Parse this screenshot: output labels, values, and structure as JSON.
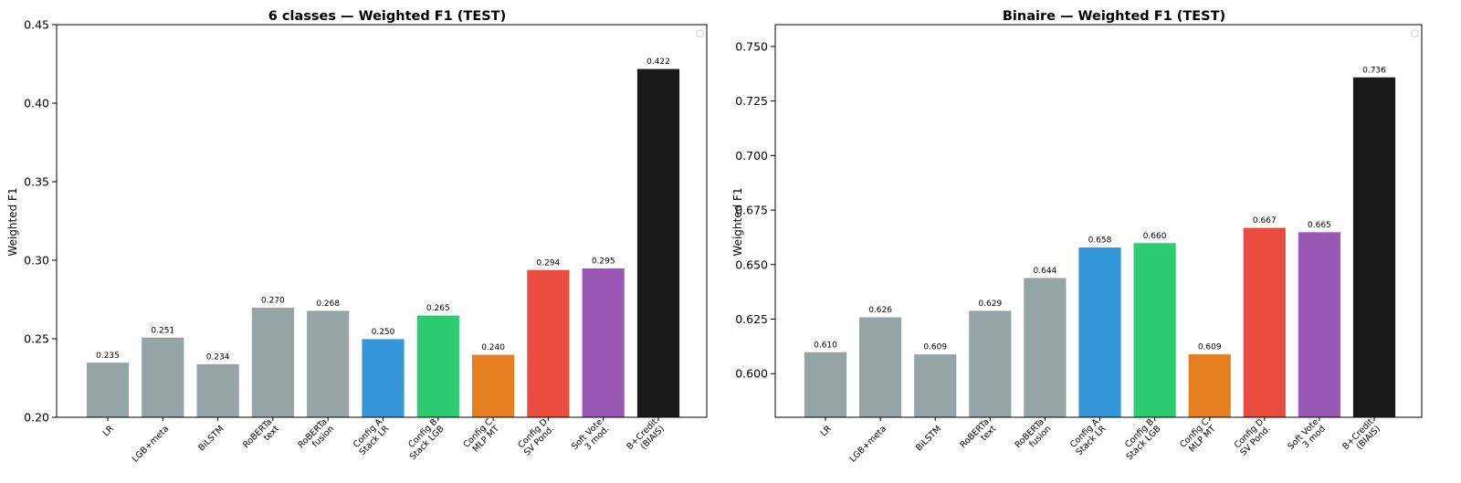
{
  "chart_data": [
    {
      "type": "bar",
      "title": "6 classes — Weighted F1 (TEST)",
      "xlabel": "",
      "ylabel": "Weighted F1",
      "ylim": [
        0.2,
        0.45
      ],
      "yticks": [
        "0.20",
        "0.25",
        "0.30",
        "0.35",
        "0.40",
        "0.45"
      ],
      "grid": false,
      "legend": "top-right (empty)",
      "categories": [
        [
          "LR"
        ],
        [
          "LGB+meta"
        ],
        [
          "BiLSTM"
        ],
        [
          "RoBERTa",
          "text"
        ],
        [
          "RoBERTa",
          "fusion"
        ],
        [
          "Config A",
          "Stack LR"
        ],
        [
          "Config B",
          "Stack LGB"
        ],
        [
          "Config C",
          "MLP MT"
        ],
        [
          "Config D",
          "SV Pond."
        ],
        [
          "Soft Vote",
          "3 mod."
        ],
        [
          "B+Credit",
          "(BIAIS)"
        ]
      ],
      "values": [
        0.235,
        0.251,
        0.234,
        0.27,
        0.268,
        0.25,
        0.265,
        0.24,
        0.294,
        0.295,
        0.422
      ],
      "value_labels": [
        "0.235",
        "0.251",
        "0.234",
        "0.270",
        "0.268",
        "0.250",
        "0.265",
        "0.240",
        "0.294",
        "0.295",
        "0.422"
      ],
      "colors": [
        "#95a5a6",
        "#95a5a6",
        "#95a5a6",
        "#95a5a6",
        "#95a5a6",
        "#3498db",
        "#2ecc71",
        "#e67e22",
        "#e74c3c",
        "#9b59b6",
        "#1a1a1a"
      ]
    },
    {
      "type": "bar",
      "title": "Binaire — Weighted F1 (TEST)",
      "xlabel": "",
      "ylabel": "Weighted F1",
      "ylim": [
        0.58,
        0.76
      ],
      "yticks": [
        "0.600",
        "0.625",
        "0.650",
        "0.675",
        "0.700",
        "0.725",
        "0.750"
      ],
      "grid": false,
      "legend": "top-right (empty)",
      "categories": [
        [
          "LR"
        ],
        [
          "LGB+meta"
        ],
        [
          "BiLSTM"
        ],
        [
          "RoBERTa",
          "text"
        ],
        [
          "RoBERTa",
          "fusion"
        ],
        [
          "Config A",
          "Stack LR"
        ],
        [
          "Config B",
          "Stack LGB"
        ],
        [
          "Config C",
          "MLP MT"
        ],
        [
          "Config D",
          "SV Pond."
        ],
        [
          "Soft Vote",
          "3 mod"
        ],
        [
          "B+Credit",
          "(BIAIS)"
        ]
      ],
      "values": [
        0.61,
        0.626,
        0.609,
        0.629,
        0.644,
        0.658,
        0.66,
        0.609,
        0.667,
        0.665,
        0.736
      ],
      "value_labels": [
        "0.610",
        "0.626",
        "0.609",
        "0.629",
        "0.644",
        "0.658",
        "0.660",
        "0.609",
        "0.667",
        "0.665",
        "0.736"
      ],
      "colors": [
        "#95a5a6",
        "#95a5a6",
        "#95a5a6",
        "#95a5a6",
        "#95a5a6",
        "#3498db",
        "#2ecc71",
        "#e67e22",
        "#e74c3c",
        "#9b59b6",
        "#1a1a1a"
      ]
    }
  ]
}
